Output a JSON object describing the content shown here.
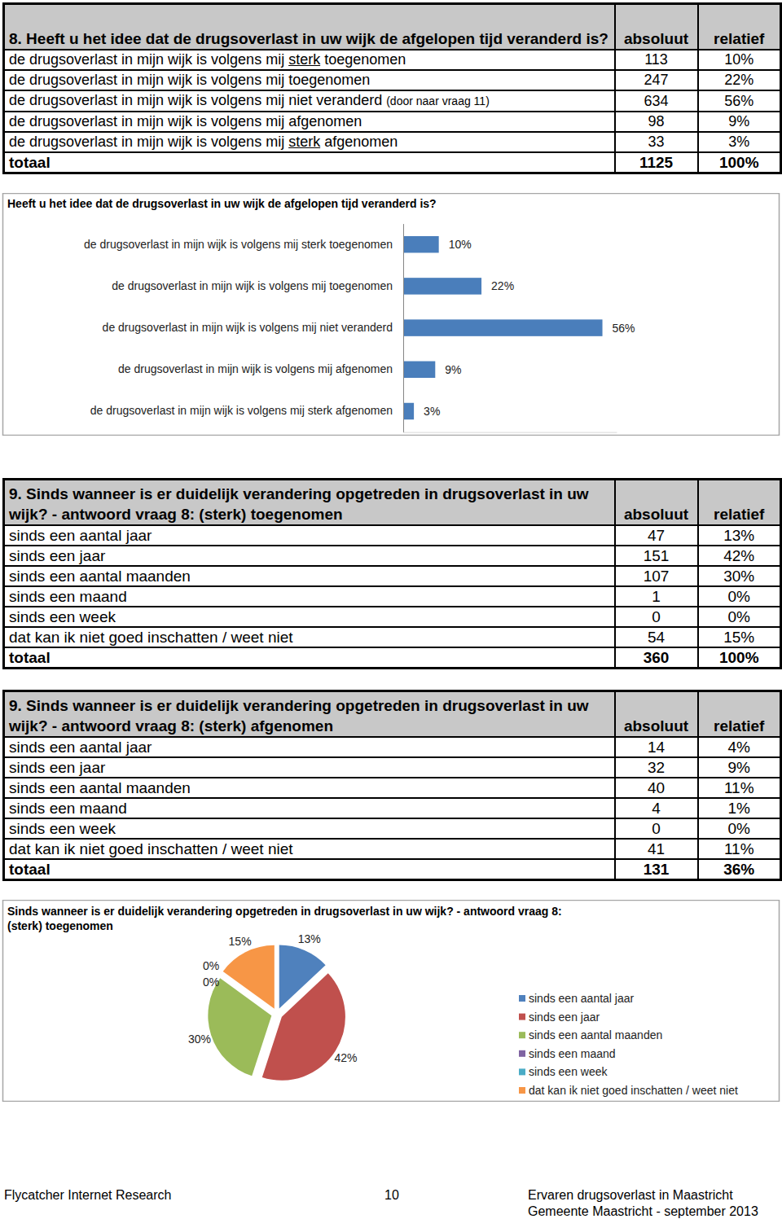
{
  "chart_data": [
    {
      "type": "bar",
      "orientation": "horizontal",
      "title": "Heeft u het idee dat de drugsoverlast in uw wijk de afgelopen tijd veranderd is?",
      "categories": [
        "de drugsoverlast in mijn wijk is volgens mij sterk toegenomen",
        "de drugsoverlast in mijn wijk is volgens mij toegenomen",
        "de drugsoverlast in mijn wijk is volgens mij niet veranderd",
        "de drugsoverlast in mijn wijk is volgens mij afgenomen",
        "de drugsoverlast in mijn wijk is volgens mij sterk afgenomen"
      ],
      "values": [
        10,
        22,
        56,
        9,
        3
      ],
      "value_labels": [
        "10%",
        "22%",
        "56%",
        "9%",
        "3%"
      ],
      "data_labels": true,
      "color": "#4a7ebb",
      "xlim": [
        0,
        60
      ],
      "xticks": [],
      "tick_labels": "y"
    },
    {
      "type": "pie",
      "title": "Sinds wanneer is er duidelijk verandering opgetreden in drugsoverlast in uw wijk? - antwoord vraag 8: (sterk) toegenomen",
      "categories": [
        "sinds een aantal jaar",
        "sinds een jaar",
        "sinds een aantal maanden",
        "sinds een maand",
        "sinds een week",
        "dat kan ik niet goed inschatten / weet niet"
      ],
      "values": [
        13,
        42,
        30,
        0,
        0,
        15
      ],
      "value_labels": [
        "13%",
        "42%",
        "30%",
        "0%",
        "0%",
        "15%"
      ],
      "data_labels": true,
      "colors": [
        "#4f81bd",
        "#c0504d",
        "#9bbb59",
        "#8064a2",
        "#4bacc6",
        "#f79646"
      ],
      "legend": "right"
    }
  ],
  "tables": [
    {
      "title": "8. Heeft u het idee dat de drugsoverlast in uw wijk de afgelopen tijd veranderd is?",
      "columns": [
        "absoluut",
        "relatief"
      ],
      "rows": [
        [
          [
            {
              "text": "de drugsoverlast in mijn wijk is volgens mij "
            },
            {
              "text": "sterk",
              "underline": true
            },
            {
              "text": " toegenomen"
            }
          ],
          113,
          "10%"
        ],
        [
          [
            {
              "text": "de drugsoverlast in mijn wijk is volgens mij toegenomen"
            }
          ],
          247,
          "22%"
        ],
        [
          [
            {
              "text": "de drugsoverlast in mijn wijk is volgens mij niet veranderd "
            },
            {
              "text": "(door naar vraag 11)",
              "small": true
            }
          ],
          634,
          "56%"
        ],
        [
          [
            {
              "text": "de drugsoverlast in mijn wijk is volgens mij afgenomen"
            }
          ],
          98,
          "9%"
        ],
        [
          [
            {
              "text": "de drugsoverlast in mijn wijk is volgens mij "
            },
            {
              "text": "sterk",
              "underline": true
            },
            {
              "text": " afgenomen"
            }
          ],
          33,
          "3%"
        ]
      ],
      "total": [
        "totaal",
        1125,
        "100%"
      ]
    },
    {
      "title": "9. Sinds wanneer is er duidelijk verandering opgetreden in drugsoverlast in uw wijk? - antwoord vraag 8: (sterk) toegenomen",
      "columns": [
        "absoluut",
        "relatief"
      ],
      "rows": [
        [
          "sinds een aantal jaar",
          47,
          "13%"
        ],
        [
          "sinds een jaar",
          151,
          "42%"
        ],
        [
          "sinds een aantal maanden",
          107,
          "30%"
        ],
        [
          "sinds een maand",
          1,
          "0%"
        ],
        [
          "sinds een week",
          0,
          "0%"
        ],
        [
          "dat kan ik niet goed inschatten / weet niet",
          54,
          "15%"
        ]
      ],
      "total": [
        "totaal",
        360,
        "100%"
      ]
    },
    {
      "title": "9. Sinds wanneer is er duidelijk verandering opgetreden in drugsoverlast in uw wijk? - antwoord vraag 8: (sterk) afgenomen",
      "columns": [
        "absoluut",
        "relatief"
      ],
      "rows": [
        [
          "sinds een aantal jaar",
          14,
          "4%"
        ],
        [
          "sinds een jaar",
          32,
          "9%"
        ],
        [
          "sinds een aantal maanden",
          40,
          "11%"
        ],
        [
          "sinds een maand",
          4,
          "1%"
        ],
        [
          "sinds een week",
          0,
          "0%"
        ],
        [
          "dat kan ik niet goed inschatten / weet niet",
          41,
          "11%"
        ]
      ],
      "total": [
        "totaal",
        131,
        "36%"
      ]
    }
  ],
  "footer": {
    "left": "Flycatcher Internet Research",
    "page": 10,
    "right": [
      "Ervaren drugsoverlast in Maastricht",
      "Gemeente Maastricht - september 2013"
    ]
  }
}
